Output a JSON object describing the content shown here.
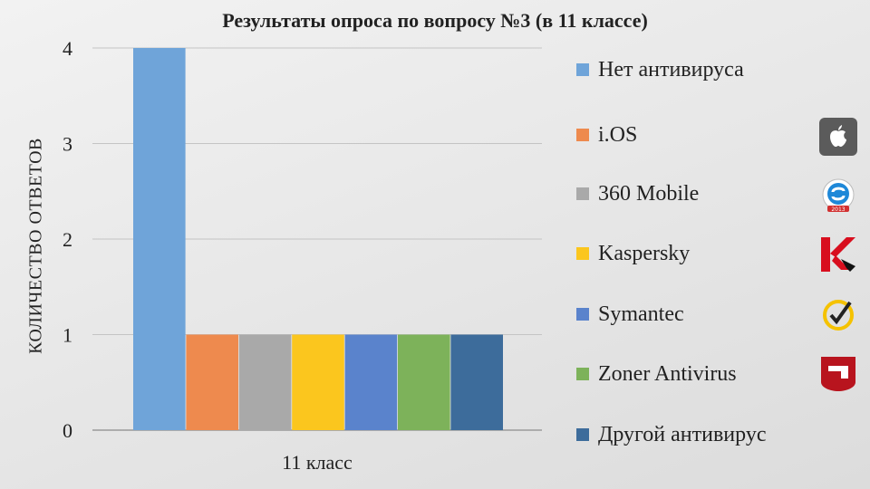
{
  "chart_data": {
    "type": "bar",
    "title": "Результаты опроса по вопросу №3 (в 11 классе)",
    "ylabel": "КОЛИЧЕСТВО ОТВЕТОВ",
    "xlabel": "",
    "categories": [
      "11 класс"
    ],
    "ylim": [
      0,
      4
    ],
    "yticks": [
      0,
      1,
      2,
      3,
      4
    ],
    "grid": true,
    "legend_position": "right",
    "series": [
      {
        "name": "Нет антивируса",
        "values": [
          4
        ],
        "color": "#6fa4d9"
      },
      {
        "name": "i.OS",
        "values": [
          1
        ],
        "color": "#ee8a4e"
      },
      {
        "name": "360 Mobile",
        "values": [
          1
        ],
        "color": "#a9a9a9"
      },
      {
        "name": "Kaspersky",
        "values": [
          1
        ],
        "color": "#fbc61e"
      },
      {
        "name": "Symantec",
        "values": [
          1
        ],
        "color": "#5a83cc"
      },
      {
        "name": "Zoner Antivirus",
        "values": [
          1
        ],
        "color": "#7db25a"
      },
      {
        "name": "Другой антивирус",
        "values": [
          1
        ],
        "color": "#3d6c9b"
      }
    ]
  },
  "logos": [
    "apple-logo-icon",
    "360-mobile-logo-icon",
    "kaspersky-logo-icon",
    "norton-logo-icon",
    "zoner-logo-icon"
  ]
}
